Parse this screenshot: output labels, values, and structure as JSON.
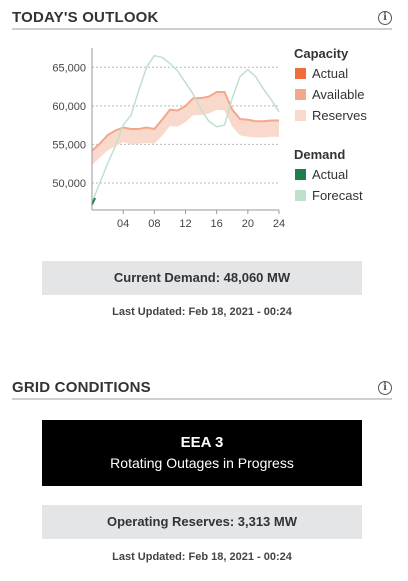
{
  "outlook": {
    "title": "TODAY'S OUTLOOK",
    "info_icon": "info-icon",
    "current_demand": "Current Demand: 48,060 MW",
    "last_updated": "Last Updated: Feb 18, 2021 - 00:24"
  },
  "grid": {
    "title": "GRID CONDITIONS",
    "info_icon": "info-icon",
    "eea_level": "EEA 3",
    "eea_desc": "Rotating Outages in Progress",
    "operating_reserves": "Operating Reserves: 3,313 MW",
    "last_updated": "Last Updated: Feb 18, 2021 - 00:24"
  },
  "chart_data": {
    "type": "line",
    "xlim": [
      0,
      24
    ],
    "ylim": [
      46500,
      67500
    ],
    "xticks": [
      4,
      8,
      12,
      16,
      20,
      24
    ],
    "xtick_labels": [
      "04",
      "08",
      "12",
      "16",
      "20",
      "24"
    ],
    "yticks": [
      50000,
      55000,
      60000,
      65000
    ],
    "ytick_labels": [
      "50,000",
      "55,000",
      "60,000",
      "65,000"
    ],
    "grid": "horizontal-dashed",
    "legend_position": "right",
    "colors": {
      "capacity_actual": "#f26c3a",
      "available": "#f3a78c",
      "reserves": "#f9d9cc",
      "demand_actual": "#1e7f4a",
      "forecast": "#bfe0cc"
    },
    "legend": [
      {
        "group": "Capacity",
        "items": [
          {
            "label": "Actual",
            "color": "#f26c3a"
          },
          {
            "label": "Available",
            "color": "#f3a78c"
          },
          {
            "label": "Reserves",
            "color": "#f9d9cc"
          }
        ]
      },
      {
        "group": "Demand",
        "items": [
          {
            "label": "Actual",
            "color": "#1e7f4a"
          },
          {
            "label": "Forecast",
            "color": "#bfe0cc"
          }
        ]
      }
    ],
    "series": [
      {
        "name": "Available",
        "x": [
          0,
          1,
          2,
          3,
          4,
          5,
          6,
          7,
          8,
          9,
          10,
          11,
          12,
          13,
          14,
          15,
          16,
          17,
          18,
          19,
          20,
          21,
          22,
          23,
          24
        ],
        "values": [
          54200,
          55100,
          56200,
          56800,
          57200,
          57000,
          57000,
          57200,
          57000,
          58200,
          59500,
          59400,
          60000,
          61000,
          61000,
          61200,
          61800,
          61800,
          59500,
          58300,
          58200,
          58000,
          58000,
          58100,
          58100
        ]
      },
      {
        "name": "Reserves",
        "x": [
          0,
          1,
          2,
          3,
          4,
          5,
          6,
          7,
          8,
          9,
          10,
          11,
          12,
          13,
          14,
          15,
          16,
          17,
          18,
          19,
          20,
          21,
          22,
          23,
          24
        ],
        "values": [
          52300,
          53300,
          54200,
          54800,
          55300,
          55000,
          55100,
          55200,
          55100,
          56100,
          57400,
          57300,
          57900,
          58800,
          58800,
          59000,
          59500,
          59400,
          57300,
          56200,
          56000,
          55900,
          55900,
          56000,
          56000
        ]
      },
      {
        "name": "Forecast",
        "x": [
          0,
          1,
          2,
          3,
          4,
          5,
          6,
          7,
          8,
          9,
          10,
          11,
          12,
          13,
          14,
          15,
          16,
          17,
          18,
          19,
          20,
          21,
          22,
          23,
          24
        ],
        "values": [
          47500,
          50000,
          52500,
          54800,
          57500,
          58800,
          62000,
          65000,
          66500,
          66300,
          65500,
          64500,
          63000,
          61500,
          59500,
          58000,
          57300,
          57500,
          61000,
          63800,
          64700,
          63800,
          62200,
          60800,
          59200
        ]
      },
      {
        "name": "Actual",
        "x": [
          0,
          0.4
        ],
        "values": [
          47200,
          48060
        ]
      }
    ]
  }
}
